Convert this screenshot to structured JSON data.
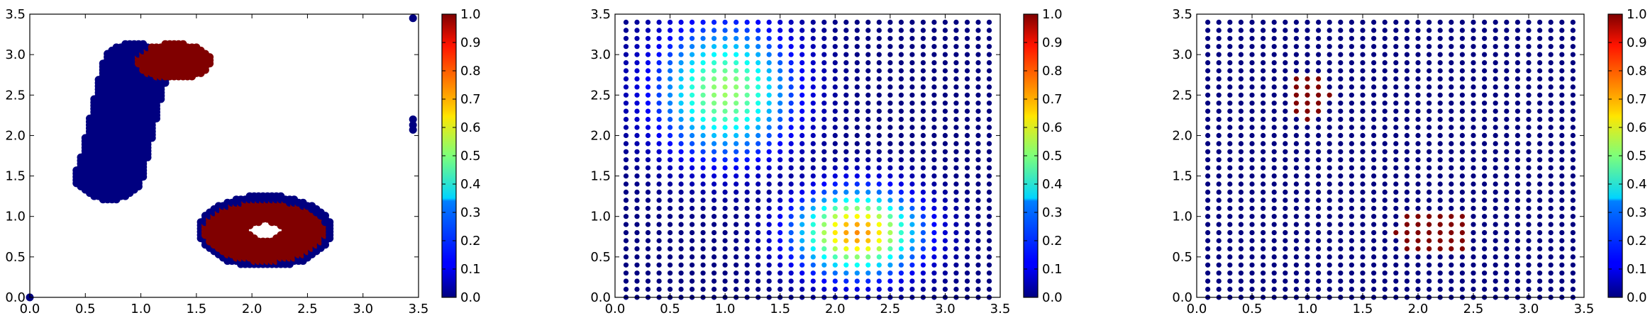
{
  "chart_data": [
    {
      "type": "scatter",
      "title": "",
      "xlabel": "",
      "ylabel": "",
      "xlim": [
        0.0,
        3.5
      ],
      "ylim": [
        0.0,
        3.5
      ],
      "xticks": [
        "0.0",
        "0.5",
        "1.0",
        "1.5",
        "2.0",
        "2.5",
        "3.0",
        "3.5"
      ],
      "yticks": [
        "0.0",
        "0.5",
        "1.0",
        "1.5",
        "2.0",
        "2.5",
        "3.0",
        "3.5"
      ],
      "grid": false,
      "colormap": "jet",
      "colorbar": {
        "range": [
          0.0,
          1.0
        ],
        "ticks": [
          "0.0",
          "0.1",
          "0.2",
          "0.3",
          "0.4",
          "0.5",
          "0.6",
          "0.7",
          "0.8",
          "0.9",
          "1.0"
        ]
      },
      "description_of_content": "",
      "regions": [
        {
          "shape": "band",
          "from": [
            0.72,
            1.5
          ],
          "to": [
            0.95,
            2.85
          ],
          "half_width": 0.3,
          "value": 0.0
        },
        {
          "shape": "ellipse",
          "center": [
            0.65,
            1.5
          ],
          "radii": [
            0.25,
            0.25
          ],
          "value": 0.0
        },
        {
          "shape": "ellipse",
          "center": [
            1.3,
            2.92
          ],
          "radii": [
            0.33,
            0.22
          ],
          "value": 1.0
        },
        {
          "shape": "ring",
          "center": [
            2.12,
            0.82
          ],
          "radii": [
            0.55,
            0.38
          ],
          "inner_radii": [
            0.15,
            0.12
          ],
          "value": 1.0
        },
        {
          "shape": "ring-edge",
          "center": [
            2.12,
            0.82
          ],
          "radii": [
            0.6,
            0.45
          ],
          "inner_radii": [
            0.5,
            0.36
          ],
          "value": 0.0
        }
      ],
      "outliers": [
        {
          "x": 0.0,
          "y": 0.0,
          "value": 0.0
        },
        {
          "x": 3.45,
          "y": 3.45,
          "value": 0.0
        },
        {
          "x": 3.45,
          "y": 2.2,
          "value": 0.0
        },
        {
          "x": 3.45,
          "y": 2.13,
          "value": 0.0
        },
        {
          "x": 3.45,
          "y": 2.07,
          "value": 0.0
        }
      ]
    },
    {
      "type": "scatter",
      "title": "",
      "xlabel": "",
      "ylabel": "",
      "xlim": [
        0.0,
        3.5
      ],
      "ylim": [
        0.0,
        3.5
      ],
      "xticks": [
        "0.0",
        "0.5",
        "1.0",
        "1.5",
        "2.0",
        "2.5",
        "3.0",
        "3.5"
      ],
      "yticks": [
        "0.0",
        "0.5",
        "1.0",
        "1.5",
        "2.0",
        "2.5",
        "3.0",
        "3.5"
      ],
      "grid": false,
      "colormap": "jet",
      "colorbar": {
        "range": [
          0.0,
          1.0
        ],
        "ticks": [
          "0.0",
          "0.1",
          "0.2",
          "0.3",
          "0.4",
          "0.5",
          "0.6",
          "0.7",
          "0.8",
          "0.9",
          "1.0"
        ]
      },
      "grid_points": {
        "x_start": 0.1,
        "x_end": 3.4,
        "y_start": 0.0,
        "y_end": 3.4,
        "step": 0.1
      },
      "field": "gaussian",
      "peaks": [
        {
          "center": [
            1.0,
            2.55
          ],
          "sigma": [
            0.42,
            0.55
          ],
          "value": 0.53
        },
        {
          "center": [
            2.2,
            0.8
          ],
          "sigma": [
            0.38,
            0.35
          ],
          "value": 0.74
        }
      ]
    },
    {
      "type": "scatter",
      "title": "",
      "xlabel": "",
      "ylabel": "",
      "xlim": [
        0.0,
        3.5
      ],
      "ylim": [
        0.0,
        3.5
      ],
      "xticks": [
        "0.0",
        "0.5",
        "1.0",
        "1.5",
        "2.0",
        "2.5",
        "3.0",
        "3.5"
      ],
      "yticks": [
        "0.0",
        "0.5",
        "1.0",
        "1.5",
        "2.0",
        "2.5",
        "3.0",
        "3.5"
      ],
      "grid": false,
      "colormap": "jet",
      "colorbar": {
        "range": [
          0.0,
          1.0
        ],
        "ticks": [
          "0.0",
          "0.1",
          "0.2",
          "0.3",
          "0.4",
          "0.5",
          "0.6",
          "0.7",
          "0.8",
          "0.9",
          "1.0"
        ]
      },
      "grid_points": {
        "x_start": 0.1,
        "x_end": 3.4,
        "y_start": 0.0,
        "y_end": 3.4,
        "step": 0.1
      },
      "field": "threshold",
      "peaks": [
        {
          "center": [
            1.0,
            2.5
          ],
          "sigma": [
            0.2,
            0.3
          ],
          "value": 1.0
        },
        {
          "center": [
            2.15,
            0.8
          ],
          "sigma": [
            0.35,
            0.3
          ],
          "value": 1.0
        }
      ]
    }
  ]
}
